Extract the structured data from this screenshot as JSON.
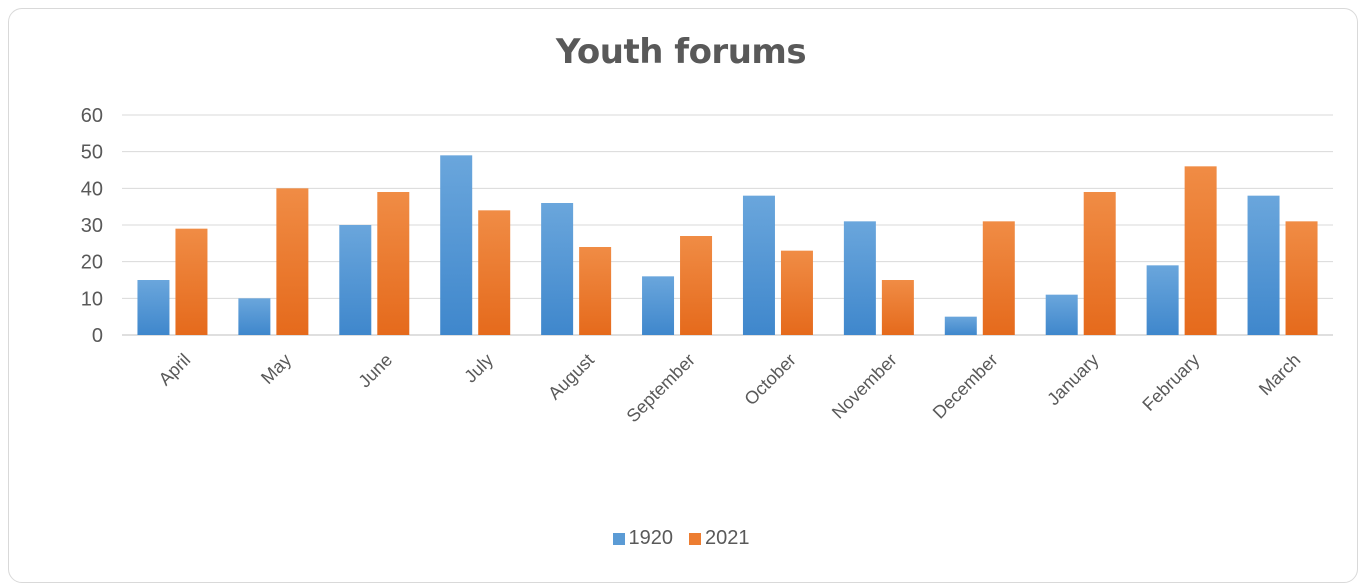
{
  "chart_data": {
    "type": "bar",
    "title": "Youth forums",
    "categories": [
      "April",
      "May",
      "June",
      "July",
      "August",
      "September",
      "October",
      "November",
      "December",
      "January",
      "February",
      "March"
    ],
    "series": [
      {
        "name": "1920",
        "color": "#5b9bd5",
        "values": [
          15,
          10,
          30,
          49,
          36,
          16,
          38,
          31,
          5,
          11,
          19,
          38
        ]
      },
      {
        "name": "2021",
        "color": "#ed7d31",
        "values": [
          29,
          40,
          39,
          34,
          24,
          27,
          23,
          15,
          31,
          39,
          46,
          31
        ]
      }
    ],
    "ylim": [
      0,
      60
    ],
    "yticks": [
      "0",
      "10",
      "20",
      "30",
      "40",
      "50",
      "60"
    ],
    "grid": true,
    "legend": "bottom"
  }
}
